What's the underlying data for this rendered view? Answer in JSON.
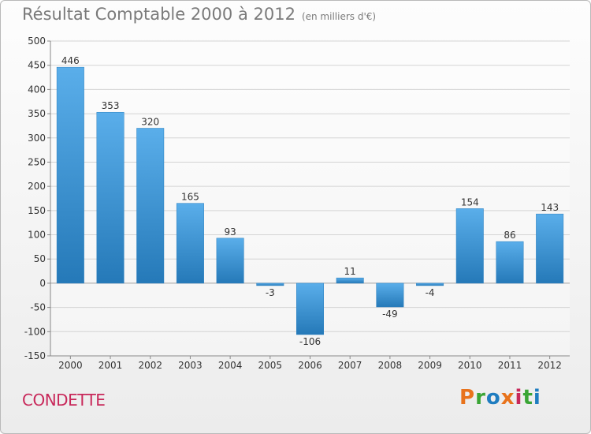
{
  "header": {
    "title": "Résultat Comptable 2000 à 2012",
    "subtitle": "(en milliers d'€)"
  },
  "footer": {
    "commune": "CONDETTE",
    "logo": "Proxiti",
    "logo_colors": [
      "#e8731c",
      "#3aa535",
      "#1f7dc0",
      "#e8731c",
      "#c8285a",
      "#3aa535",
      "#1f7dc0"
    ]
  },
  "colors": {
    "bar_top": "#5aaeea",
    "bar_bottom": "#2579b8",
    "grid": "#d4d4d4",
    "zero_line": "#a0a0a0"
  },
  "chart_data": {
    "type": "bar",
    "title": "Résultat Comptable 2000 à 2012",
    "subtitle": "(en milliers d'€)",
    "xlabel": "",
    "ylabel": "",
    "categories": [
      "2000",
      "2001",
      "2002",
      "2003",
      "2004",
      "2005",
      "2006",
      "2007",
      "2008",
      "2009",
      "2010",
      "2011",
      "2012"
    ],
    "values": [
      446,
      353,
      320,
      165,
      93,
      -3,
      -106,
      11,
      -49,
      -4,
      154,
      86,
      143
    ],
    "value_labels": [
      "446",
      "353",
      "320",
      "165",
      "93",
      "-3",
      "-106",
      "11",
      "-49",
      "-4",
      "154",
      "86",
      "143"
    ],
    "ylim": [
      -150,
      500
    ],
    "yticks": [
      -150,
      -100,
      -50,
      0,
      50,
      100,
      150,
      200,
      250,
      300,
      350,
      400,
      450,
      500
    ],
    "ytick_labels": [
      "-150",
      "-100",
      "-50",
      "0",
      "50",
      "100",
      "150",
      "200",
      "250",
      "300",
      "350",
      "400",
      "450",
      "500"
    ],
    "grid": true
  }
}
